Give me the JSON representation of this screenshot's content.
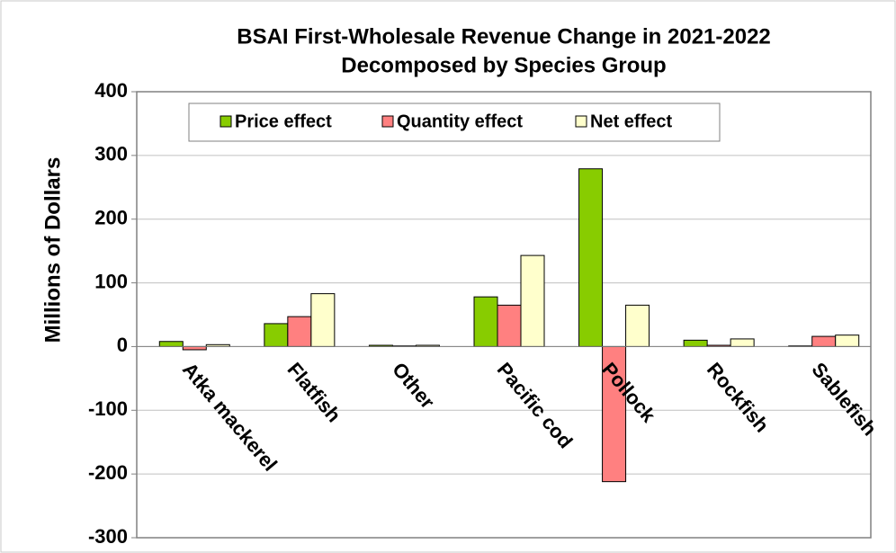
{
  "chart_data": {
    "type": "bar",
    "title": [
      "BSAI First-Wholesale Revenue Change in 2021-2022",
      "Decomposed by Species Group"
    ],
    "y_label": "Millions of Dollars",
    "categories": [
      "Atka mackerel",
      "Flatfish",
      "Other",
      "Pacific cod",
      "Pollock",
      "Rockfish",
      "Sablefish"
    ],
    "series": [
      {
        "name": "Price effect",
        "color": "#88cc00",
        "values": [
          8,
          36,
          2,
          78,
          279,
          10,
          1
        ]
      },
      {
        "name": "Quantity effect",
        "color": "#ff8080",
        "values": [
          -5,
          47,
          1,
          65,
          -212,
          2,
          16
        ]
      },
      {
        "name": "Net effect",
        "color": "#ffffcc",
        "values": [
          3,
          83,
          2,
          143,
          65,
          12,
          18
        ]
      }
    ],
    "ylim": [
      -300,
      400
    ],
    "yticks": [
      -300,
      -200,
      -100,
      0,
      100,
      200,
      300,
      400
    ],
    "grid": true,
    "legend": "top-left"
  }
}
